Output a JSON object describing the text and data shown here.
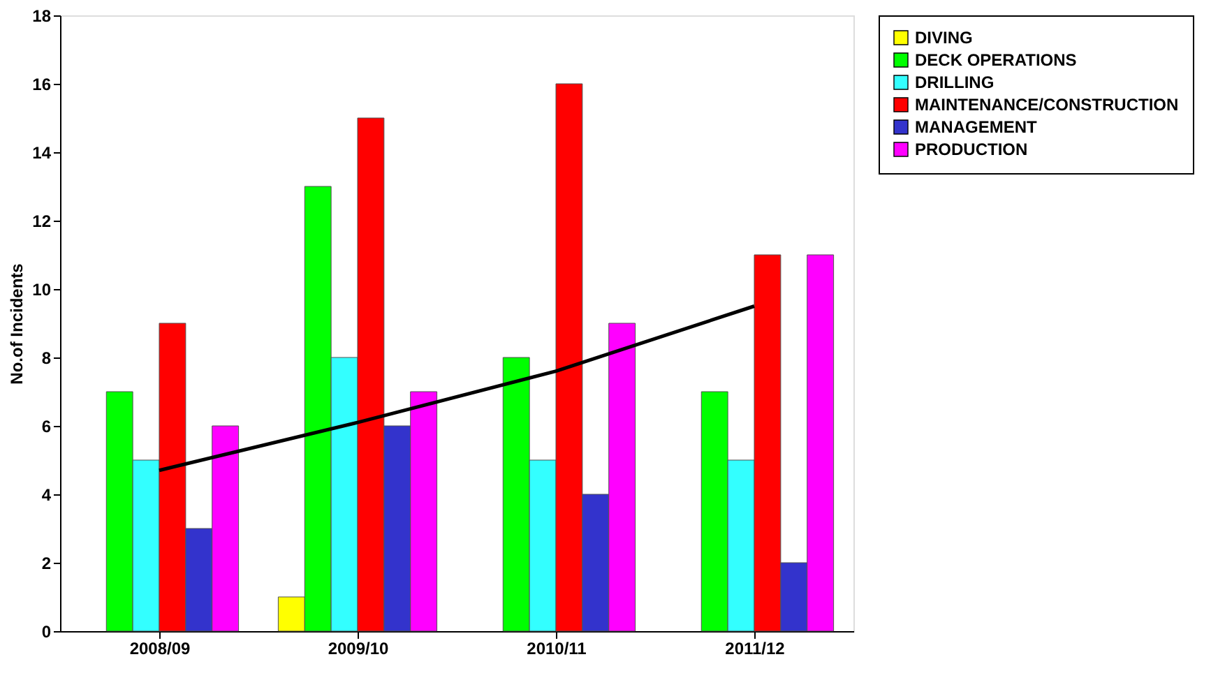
{
  "chart_data": {
    "type": "bar",
    "ylabel": "No.of Incidents",
    "categories": [
      "2008/09",
      "2009/10",
      "2010/11",
      "2011/12"
    ],
    "series": [
      {
        "name": "DIVING",
        "color": "#ffff00",
        "values": [
          null,
          1,
          null,
          null
        ]
      },
      {
        "name": "DECK OPERATIONS",
        "color": "#00ff00",
        "values": [
          7,
          13,
          8,
          7
        ]
      },
      {
        "name": "DRILLING",
        "color": "#33ffff",
        "values": [
          5,
          8,
          5,
          5
        ]
      },
      {
        "name": "MAINTENANCE/CONSTRUCTION",
        "color": "#ff0000",
        "values": [
          9,
          15,
          16,
          11
        ]
      },
      {
        "name": "MANAGEMENT",
        "color": "#3333cc",
        "values": [
          3,
          6,
          4,
          2
        ]
      },
      {
        "name": "PRODUCTION",
        "color": "#ff00ff",
        "values": [
          6,
          7,
          9,
          11
        ]
      },
      {
        "type": "line",
        "color": "#000000",
        "values": [
          4.7,
          6.1,
          7.6,
          9.5
        ]
      }
    ],
    "ylim": [
      0,
      18
    ],
    "yticks": [
      0,
      2,
      4,
      6,
      8,
      10,
      12,
      14,
      16,
      18
    ],
    "grid": false,
    "legend": "right"
  }
}
